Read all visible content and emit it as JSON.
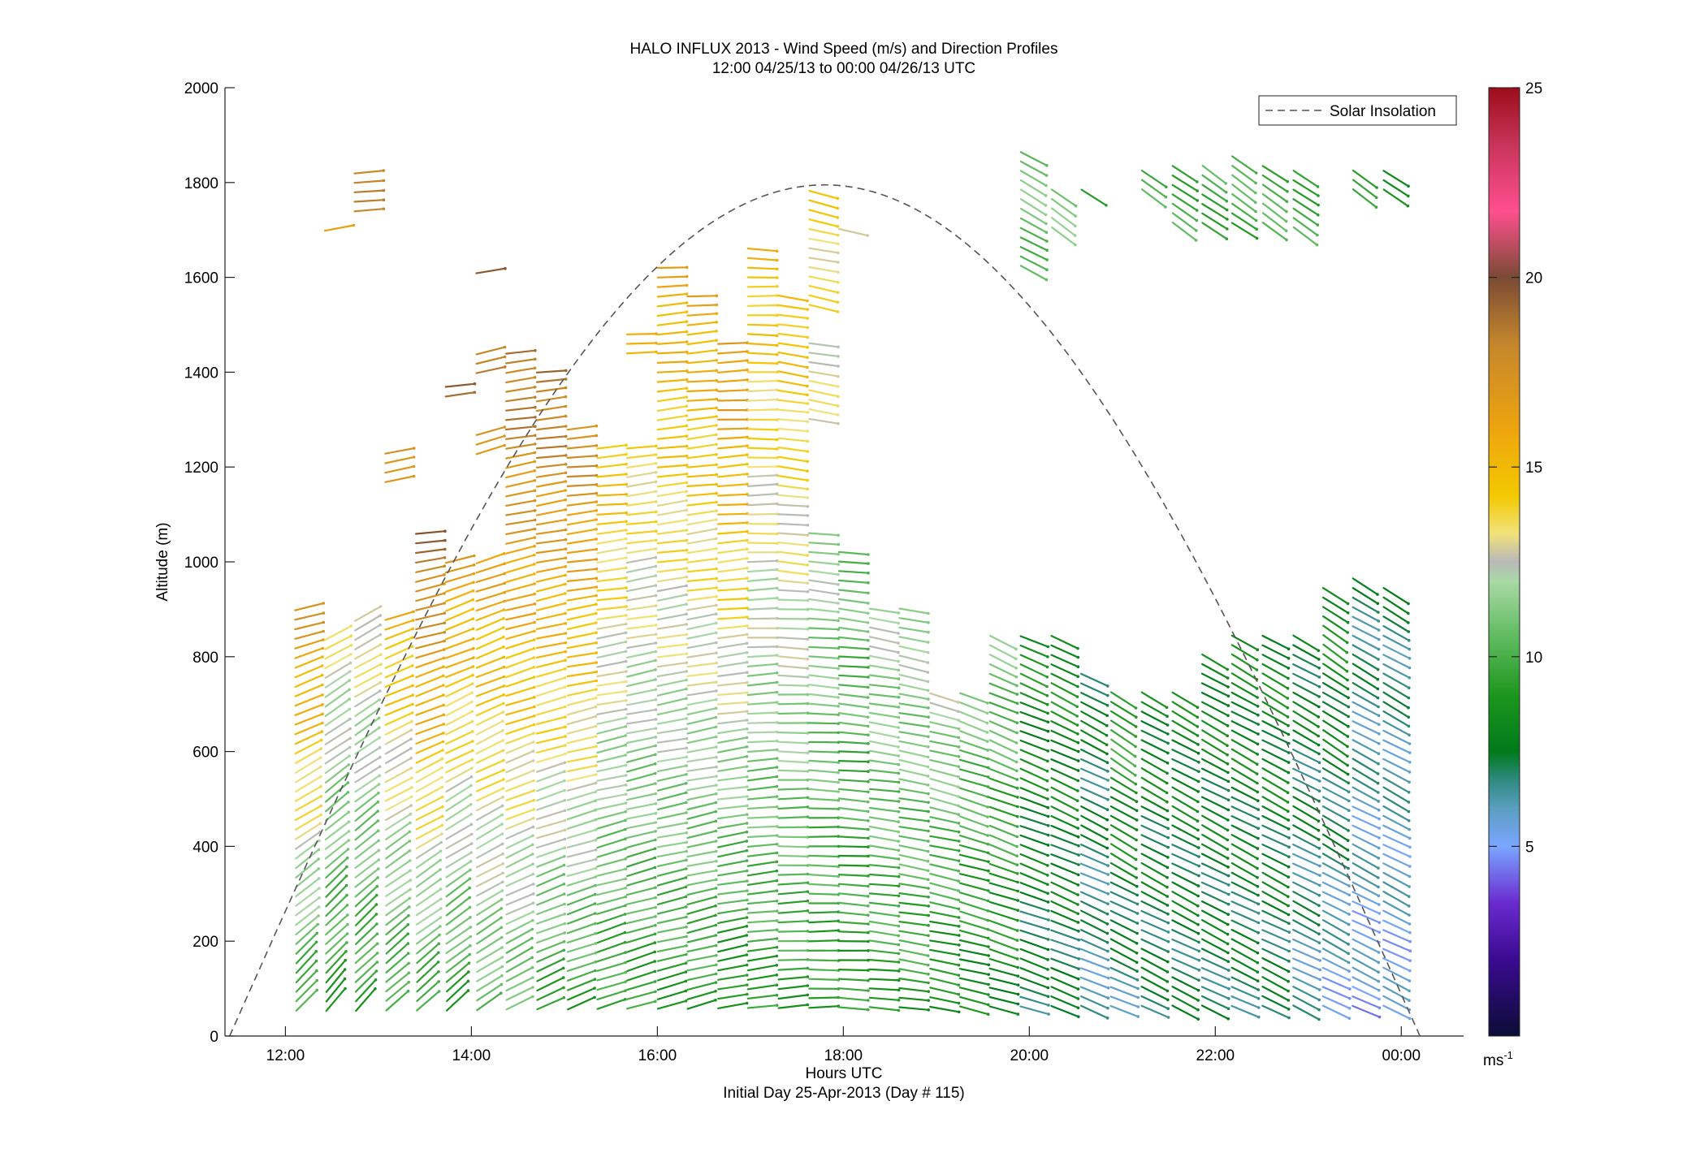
{
  "chart_data": {
    "type": "scatter",
    "title": "HALO INFLUX 2013 - Wind Speed (m/s) and Direction Profiles",
    "subtitle": "12:00 04/25/13 to 00:00 04/26/13  UTC",
    "xlabel": "Hours UTC",
    "xlabel2": "Initial Day 25-Apr-2013 (Day # 115)",
    "ylabel": "Altitude (m)",
    "xlim": [
      11.35,
      24.67
    ],
    "ylim": [
      0,
      2000
    ],
    "x_ticks": [
      {
        "value": 12,
        "label": "12:00"
      },
      {
        "value": 14,
        "label": "14:00"
      },
      {
        "value": 16,
        "label": "16:00"
      },
      {
        "value": 18,
        "label": "18:00"
      },
      {
        "value": 20,
        "label": "20:00"
      },
      {
        "value": 22,
        "label": "22:00"
      },
      {
        "value": 24,
        "label": "00:00"
      }
    ],
    "y_ticks": [
      0,
      200,
      400,
      600,
      800,
      1000,
      1200,
      1400,
      1600,
      1800,
      2000
    ],
    "legend": {
      "entries": [
        "Solar Insolation"
      ],
      "position": "top-right"
    },
    "colorbar": {
      "range": [
        0,
        25
      ],
      "ticks": [
        5,
        10,
        15,
        20,
        25
      ],
      "unit": "ms",
      "unit_sup": "-1"
    },
    "solar_insolation": {
      "style": "dashed",
      "color": "#555555",
      "peak_time": 17.8,
      "peak_altitude": 1795,
      "zero_times": [
        11.4,
        24.2
      ]
    },
    "wind_profiles": [
      {
        "hour": 12.15,
        "max_alt": 900,
        "speed_low": 9,
        "speed_high": 17,
        "dir_low": 220,
        "dir_high": 255,
        "bands": [
          [
            60,
            900
          ]
        ]
      },
      {
        "hour": 12.47,
        "max_alt": 1710,
        "speed_low": 9,
        "speed_high": 17,
        "dir_low": 220,
        "dir_high": 262,
        "bands": [
          [
            60,
            840
          ],
          [
            1700,
            1710
          ]
        ]
      },
      {
        "hour": 12.79,
        "max_alt": 1830,
        "speed_low": 9,
        "speed_high": 18,
        "dir_low": 222,
        "dir_high": 265,
        "bands": [
          [
            60,
            880
          ],
          [
            1740,
            1830
          ]
        ]
      },
      {
        "hour": 13.12,
        "max_alt": 1245,
        "speed_low": 9,
        "speed_high": 18,
        "dir_low": 225,
        "dir_high": 262,
        "bands": [
          [
            60,
            890
          ],
          [
            1170,
            1245
          ]
        ]
      },
      {
        "hour": 13.45,
        "max_alt": 1060,
        "speed_low": 9,
        "speed_high": 19,
        "dir_low": 225,
        "dir_high": 262,
        "bands": [
          [
            60,
            1060
          ]
        ]
      },
      {
        "hour": 13.77,
        "max_alt": 1370,
        "speed_low": 9,
        "speed_high": 19,
        "dir_low": 228,
        "dir_high": 262,
        "bands": [
          [
            60,
            1010
          ],
          [
            1350,
            1370
          ]
        ]
      },
      {
        "hour": 14.1,
        "max_alt": 1625,
        "speed_low": 10,
        "speed_high": 20,
        "dir_low": 235,
        "dir_high": 262,
        "bands": [
          [
            60,
            1010
          ],
          [
            1230,
            1280
          ],
          [
            1400,
            1450
          ],
          [
            1610,
            1625
          ]
        ]
      },
      {
        "hour": 14.42,
        "max_alt": 1450,
        "speed_low": 10,
        "speed_high": 19,
        "dir_low": 240,
        "dir_high": 264,
        "bands": [
          [
            60,
            1450
          ]
        ]
      },
      {
        "hour": 14.75,
        "max_alt": 1410,
        "speed_low": 9,
        "speed_high": 19,
        "dir_low": 245,
        "dir_high": 265,
        "bands": [
          [
            60,
            1410
          ]
        ]
      },
      {
        "hour": 15.08,
        "max_alt": 1290,
        "speed_low": 9,
        "speed_high": 18,
        "dir_low": 248,
        "dir_high": 266,
        "bands": [
          [
            60,
            1290
          ]
        ]
      },
      {
        "hour": 15.4,
        "max_alt": 1250,
        "speed_low": 9,
        "speed_high": 15,
        "dir_low": 250,
        "dir_high": 266,
        "bands": [
          [
            60,
            1250
          ]
        ]
      },
      {
        "hour": 15.72,
        "max_alt": 1490,
        "speed_low": 9,
        "speed_high": 15,
        "dir_low": 252,
        "dir_high": 266,
        "bands": [
          [
            60,
            1250
          ],
          [
            1440,
            1490
          ]
        ]
      },
      {
        "hour": 16.05,
        "max_alt": 1630,
        "speed_low": 9,
        "speed_high": 16,
        "dir_low": 255,
        "dir_high": 266,
        "bands": [
          [
            60,
            1630
          ]
        ]
      },
      {
        "hour": 16.37,
        "max_alt": 1570,
        "speed_low": 9,
        "speed_high": 16,
        "dir_low": 255,
        "dir_high": 266,
        "bands": [
          [
            60,
            1570
          ]
        ]
      },
      {
        "hour": 16.7,
        "max_alt": 1460,
        "speed_low": 8,
        "speed_high": 17,
        "dir_low": 258,
        "dir_high": 268,
        "bands": [
          [
            60,
            1460
          ]
        ]
      },
      {
        "hour": 17.02,
        "max_alt": 1670,
        "speed_low": 9,
        "speed_high": 15,
        "dir_low": 262,
        "dir_high": 272,
        "bands": [
          [
            60,
            1670
          ]
        ]
      },
      {
        "hour": 17.35,
        "max_alt": 1570,
        "speed_low": 9,
        "speed_high": 15,
        "dir_low": 265,
        "dir_high": 280,
        "bands": [
          [
            60,
            1570
          ]
        ]
      },
      {
        "hour": 17.68,
        "max_alt": 1790,
        "speed_low": 9,
        "speed_high": 14,
        "dir_low": 268,
        "dir_high": 283,
        "bands": [
          [
            60,
            1060
          ],
          [
            1300,
            1460
          ],
          [
            1540,
            1790
          ]
        ]
      },
      {
        "hour": 18.0,
        "max_alt": 1710,
        "speed_low": 9,
        "speed_high": 12,
        "dir_low": 272,
        "dir_high": 280,
        "bands": [
          [
            60,
            1020
          ],
          [
            1700,
            1710
          ]
        ]
      },
      {
        "hour": 18.33,
        "max_alt": 900,
        "speed_low": 9,
        "speed_high": 12,
        "dir_low": 275,
        "dir_high": 280,
        "bands": [
          [
            60,
            900
          ]
        ]
      },
      {
        "hour": 18.65,
        "max_alt": 900,
        "speed_low": 9,
        "speed_high": 12,
        "dir_low": 278,
        "dir_high": 282,
        "bands": [
          [
            60,
            900
          ]
        ]
      },
      {
        "hour": 18.98,
        "max_alt": 730,
        "speed_low": 8,
        "speed_high": 12,
        "dir_low": 280,
        "dir_high": 285,
        "bands": [
          [
            60,
            730
          ]
        ]
      },
      {
        "hour": 19.3,
        "max_alt": 720,
        "speed_low": 8,
        "speed_high": 11,
        "dir_low": 282,
        "dir_high": 290,
        "bands": [
          [
            60,
            720
          ]
        ]
      },
      {
        "hour": 19.62,
        "max_alt": 840,
        "speed_low": 8,
        "speed_high": 11,
        "dir_low": 285,
        "dir_high": 295,
        "bands": [
          [
            60,
            840
          ]
        ]
      },
      {
        "hour": 19.95,
        "max_alt": 1860,
        "speed_low": 7,
        "speed_high": 11,
        "dir_low": 288,
        "dir_high": 300,
        "bands": [
          [
            60,
            840
          ],
          [
            1620,
            1860
          ]
        ]
      },
      {
        "hour": 20.28,
        "max_alt": 1780,
        "speed_low": 7,
        "speed_high": 11,
        "dir_low": 290,
        "dir_high": 305,
        "bands": [
          [
            60,
            840
          ],
          [
            1700,
            1780
          ]
        ]
      },
      {
        "hour": 20.6,
        "max_alt": 1780,
        "speed_low": 6,
        "speed_high": 10,
        "dir_low": 292,
        "dir_high": 305,
        "bands": [
          [
            60,
            760
          ],
          [
            1780,
            1780
          ]
        ]
      },
      {
        "hour": 20.92,
        "max_alt": 730,
        "speed_low": 6,
        "speed_high": 10,
        "dir_low": 292,
        "dir_high": 305,
        "bands": [
          [
            60,
            730
          ]
        ]
      },
      {
        "hour": 21.25,
        "max_alt": 1830,
        "speed_low": 7,
        "speed_high": 10,
        "dir_low": 295,
        "dir_high": 305,
        "bands": [
          [
            60,
            730
          ],
          [
            1780,
            1830
          ]
        ]
      },
      {
        "hour": 21.58,
        "max_alt": 1830,
        "speed_low": 7,
        "speed_high": 10,
        "dir_low": 295,
        "dir_high": 305,
        "bands": [
          [
            60,
            720
          ],
          [
            1710,
            1830
          ]
        ]
      },
      {
        "hour": 21.9,
        "max_alt": 1830,
        "speed_low": 7,
        "speed_high": 10,
        "dir_low": 295,
        "dir_high": 305,
        "bands": [
          [
            60,
            800
          ],
          [
            1710,
            1830
          ]
        ]
      },
      {
        "hour": 22.22,
        "max_alt": 1860,
        "speed_low": 7,
        "speed_high": 10,
        "dir_low": 295,
        "dir_high": 305,
        "bands": [
          [
            60,
            840
          ],
          [
            1710,
            1860
          ]
        ]
      },
      {
        "hour": 22.55,
        "max_alt": 1830,
        "speed_low": 7,
        "speed_high": 10,
        "dir_low": 295,
        "dir_high": 305,
        "bands": [
          [
            60,
            840
          ],
          [
            1710,
            1830
          ]
        ]
      },
      {
        "hour": 22.88,
        "max_alt": 1830,
        "speed_low": 6,
        "speed_high": 10,
        "dir_low": 295,
        "dir_high": 305,
        "bands": [
          [
            60,
            840
          ],
          [
            1700,
            1830
          ]
        ]
      },
      {
        "hour": 23.2,
        "max_alt": 950,
        "speed_low": 5,
        "speed_high": 9,
        "dir_low": 295,
        "dir_high": 305,
        "bands": [
          [
            60,
            950
          ]
        ]
      },
      {
        "hour": 23.52,
        "max_alt": 1830,
        "speed_low": 5,
        "speed_high": 9,
        "dir_low": 295,
        "dir_high": 305,
        "bands": [
          [
            60,
            960
          ],
          [
            1780,
            1830
          ]
        ]
      },
      {
        "hour": 23.85,
        "max_alt": 1830,
        "speed_low": 5,
        "speed_high": 9,
        "dir_low": 295,
        "dir_high": 305,
        "bands": [
          [
            60,
            950
          ],
          [
            1780,
            1830
          ]
        ]
      }
    ]
  }
}
